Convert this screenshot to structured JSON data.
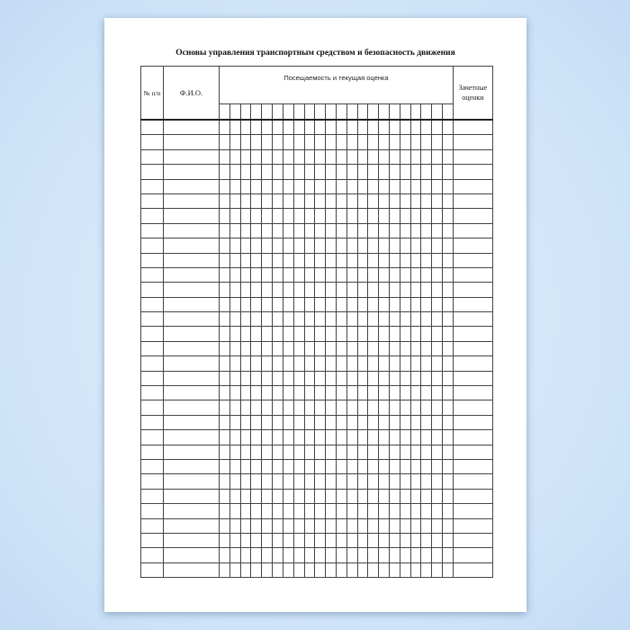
{
  "document": {
    "title": "Основы управления транспортным средством и безопасность движения",
    "columns": {
      "number": "№ п/п",
      "name": "Ф.И.О.",
      "attendance": "Посещаемость и текущая оценка",
      "credit_grades": "Зачетные оценки"
    }
  }
}
